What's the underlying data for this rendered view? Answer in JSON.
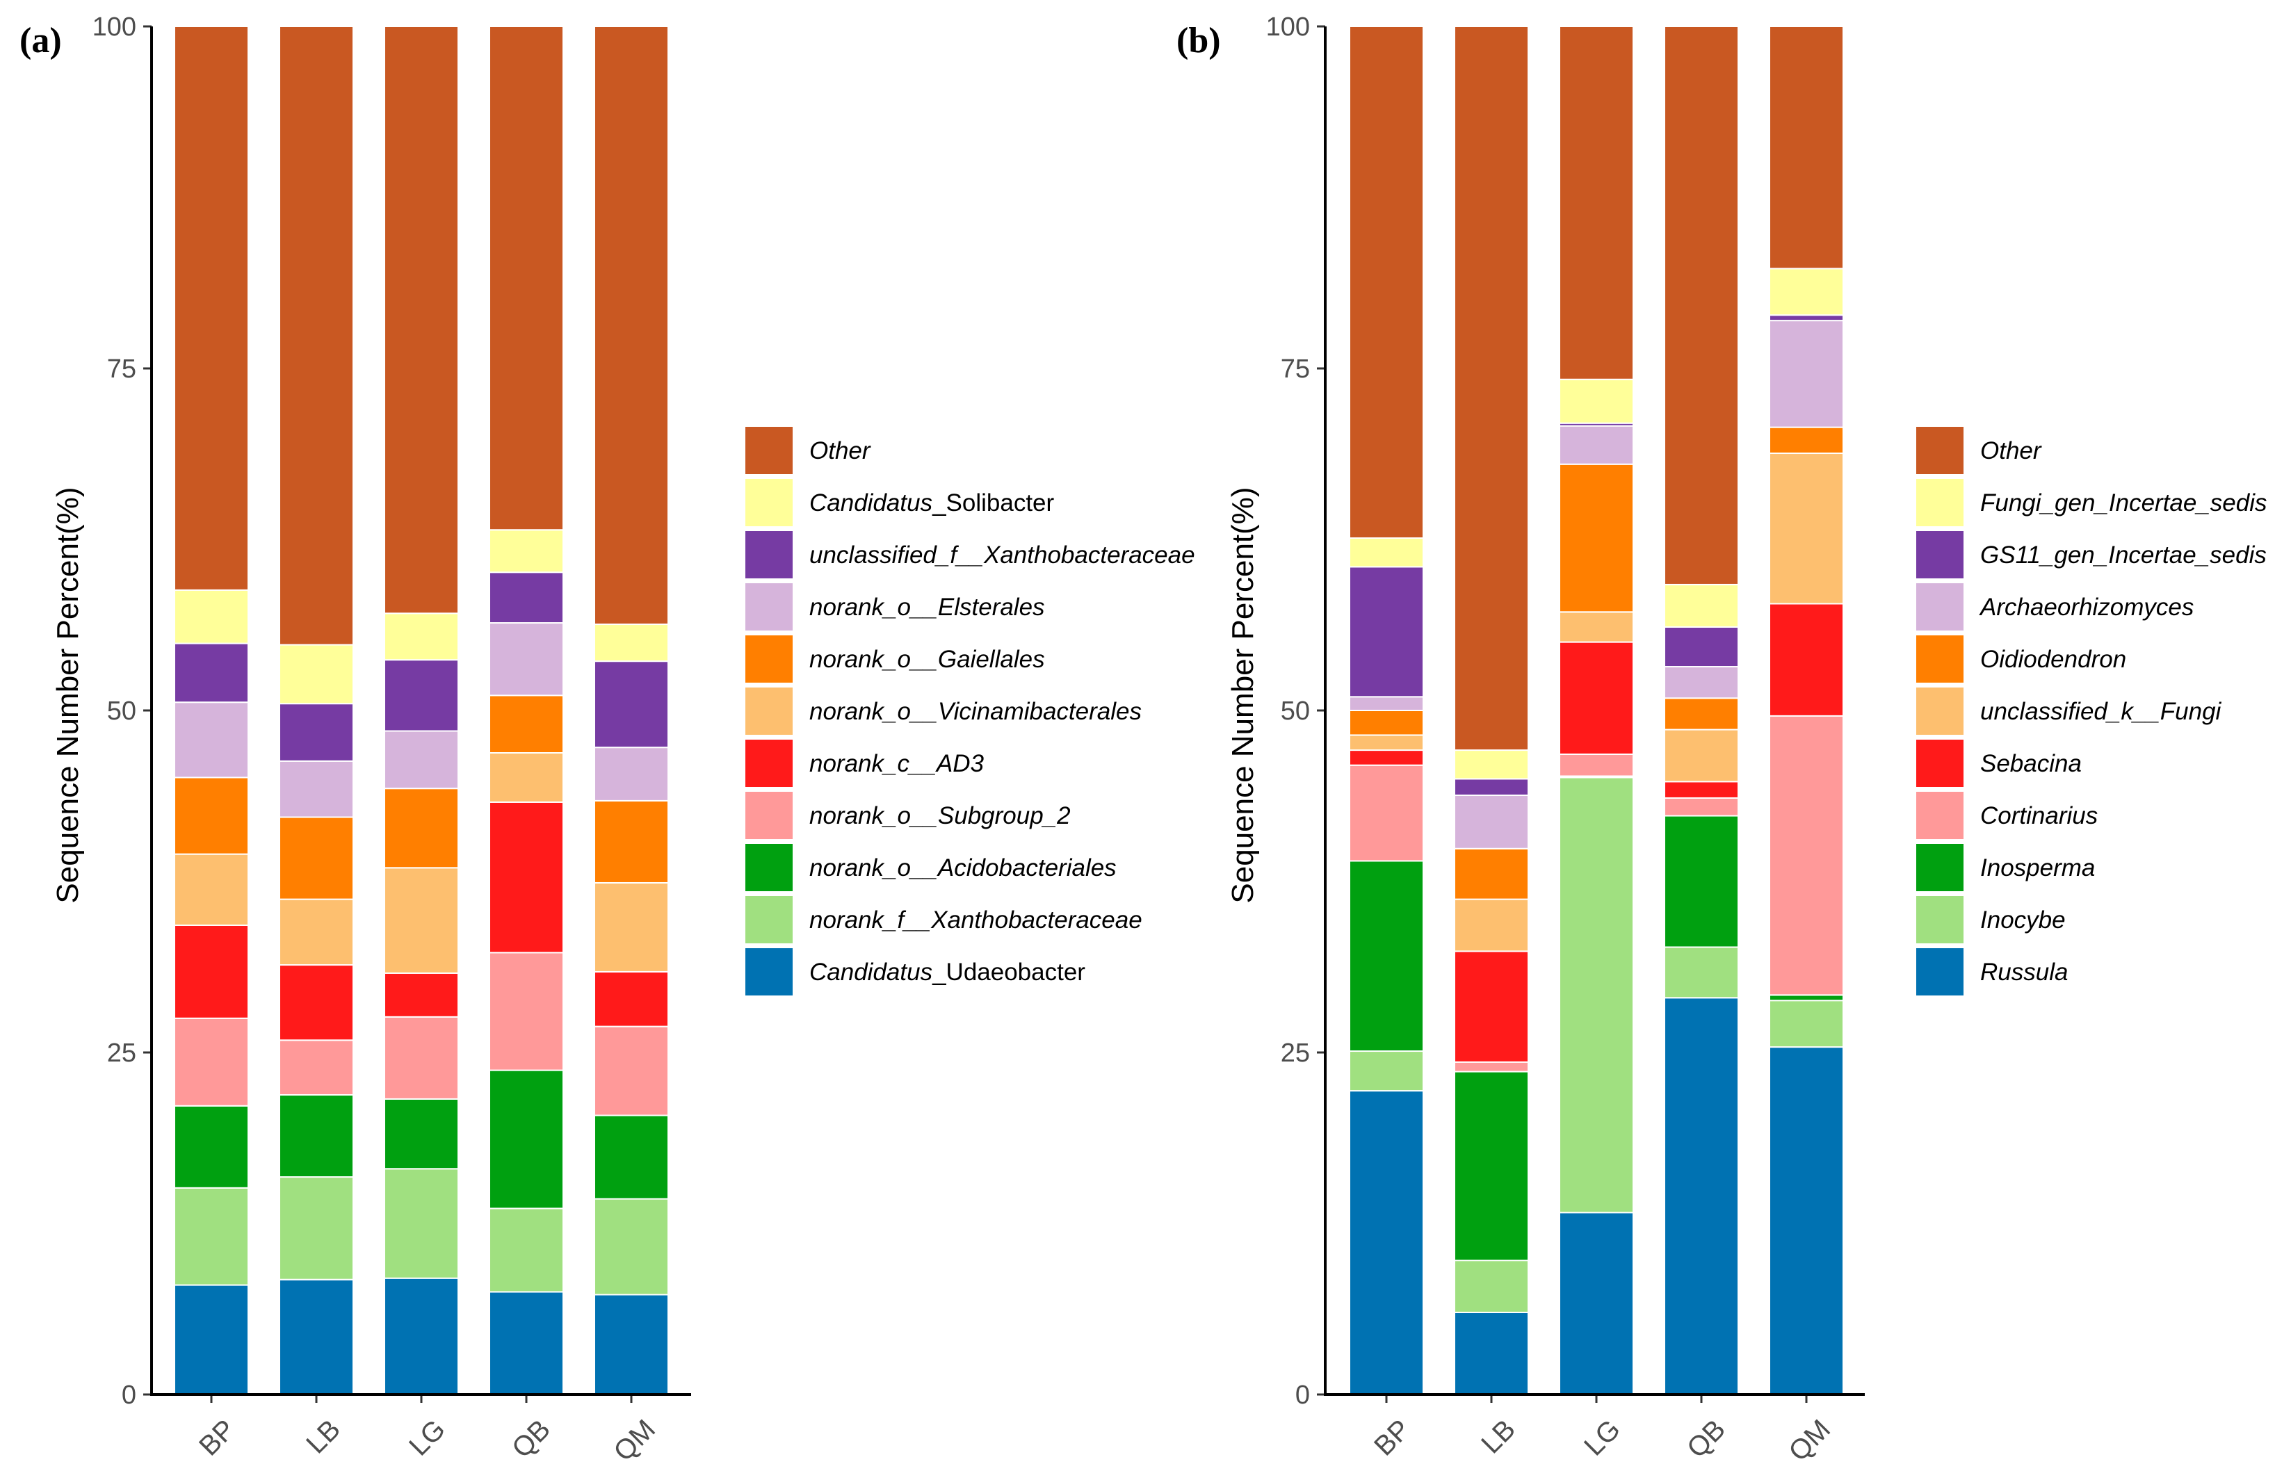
{
  "chart_data": [
    {
      "type": "bar",
      "stacked": true,
      "panel_label": "(a)",
      "ylabel": "Sequence Number Percent(%)",
      "ylim": [
        0,
        100
      ],
      "yticks": [
        "0",
        "25",
        "50",
        "75",
        "100"
      ],
      "categories": [
        "BP",
        "LB",
        "LG",
        "QB",
        "QM"
      ],
      "series": [
        {
          "name": "Candidatus_Udaeobacter",
          "label_parts": [
            {
              "t": "Candidatus",
              "i": true
            },
            {
              "t": "_Udaeobacter",
              "i": false
            }
          ],
          "color": "#0072B2",
          "values": [
            8.0,
            8.4,
            8.5,
            7.5,
            7.3
          ]
        },
        {
          "name": "norank_f__Xanthobacteraceae",
          "label_parts": [
            {
              "t": "norank_f__Xanthobacteraceae",
              "i": true
            }
          ],
          "color": "#A0E080",
          "values": [
            7.1,
            7.5,
            8.0,
            6.1,
            7.0
          ]
        },
        {
          "name": "norank_o__Acidobacteriales",
          "label_parts": [
            {
              "t": "norank_o__Acidobacteriales",
              "i": true
            }
          ],
          "color": "#00A010",
          "values": [
            6.0,
            6.0,
            5.1,
            10.1,
            6.1
          ]
        },
        {
          "name": "norank_o__Subgroup_2",
          "label_parts": [
            {
              "t": "norank_o__Subgroup_2",
              "i": true
            }
          ],
          "color": "#FF9999",
          "values": [
            6.4,
            4.0,
            6.0,
            8.6,
            6.5
          ]
        },
        {
          "name": "norank_c__AD3",
          "label_parts": [
            {
              "t": "norank_c__AD3",
              "i": true
            }
          ],
          "color": "#FF1A1A",
          "values": [
            6.8,
            5.5,
            3.2,
            11.0,
            4.0
          ]
        },
        {
          "name": "norank_o__Vicinamibacterales",
          "label_parts": [
            {
              "t": "norank_o__Vicinamibacterales",
              "i": true
            }
          ],
          "color": "#FDBF6F",
          "values": [
            5.2,
            4.8,
            7.7,
            3.6,
            6.5
          ]
        },
        {
          "name": "norank_o__Gaiellales",
          "label_parts": [
            {
              "t": "norank_o__Gaiellales",
              "i": true
            }
          ],
          "color": "#FF7F00",
          "values": [
            5.6,
            6.0,
            5.8,
            4.2,
            6.0
          ]
        },
        {
          "name": "norank_o__Elsterales",
          "label_parts": [
            {
              "t": "norank_o__Elsterales",
              "i": true
            }
          ],
          "color": "#D6B4DB",
          "values": [
            5.5,
            4.1,
            4.2,
            5.3,
            3.9
          ]
        },
        {
          "name": "unclassified_f__Xanthobacteraceae",
          "label_parts": [
            {
              "t": "unclassified_f__Xanthobacteraceae",
              "i": true
            }
          ],
          "color": "#763BA3",
          "values": [
            4.3,
            4.2,
            5.2,
            3.7,
            6.3
          ]
        },
        {
          "name": "Candidatus_Solibacter",
          "label_parts": [
            {
              "t": "Candidatus",
              "i": true
            },
            {
              "t": "_Solibacter",
              "i": false
            }
          ],
          "color": "#FFFF99",
          "values": [
            3.9,
            4.3,
            3.4,
            3.1,
            2.7
          ]
        },
        {
          "name": "Other",
          "label_parts": [
            {
              "t": "Other",
              "i": true
            }
          ],
          "color": "#C95822",
          "values": [
            41.2,
            45.2,
            42.9,
            36.8,
            43.7
          ]
        }
      ]
    },
    {
      "type": "bar",
      "stacked": true,
      "panel_label": "(b)",
      "ylabel": "Sequence Number Percent(%)",
      "ylim": [
        0,
        100
      ],
      "yticks": [
        "0",
        "25",
        "50",
        "75",
        "100"
      ],
      "categories": [
        "BP",
        "LB",
        "LG",
        "QB",
        "QM"
      ],
      "series": [
        {
          "name": "Russula",
          "label_parts": [
            {
              "t": "Russula",
              "i": true
            }
          ],
          "color": "#0072B2",
          "values": [
            22.2,
            6.0,
            13.3,
            29.0,
            25.4
          ]
        },
        {
          "name": "Inocybe",
          "label_parts": [
            {
              "t": "Inocybe",
              "i": true
            }
          ],
          "color": "#A0E080",
          "values": [
            2.9,
            3.8,
            31.8,
            3.7,
            3.4
          ]
        },
        {
          "name": "Inosperma",
          "label_parts": [
            {
              "t": "Inosperma",
              "i": true
            }
          ],
          "color": "#00A010",
          "values": [
            13.9,
            13.8,
            0.1,
            9.6,
            0.4
          ]
        },
        {
          "name": "Cortinarius",
          "label_parts": [
            {
              "t": "Cortinarius",
              "i": true
            }
          ],
          "color": "#FF9999",
          "values": [
            7.0,
            0.7,
            1.6,
            1.3,
            20.4
          ]
        },
        {
          "name": "Sebacina",
          "label_parts": [
            {
              "t": "Sebacina",
              "i": true
            }
          ],
          "color": "#FF1A1A",
          "values": [
            1.1,
            8.1,
            8.2,
            1.2,
            8.2
          ]
        },
        {
          "name": "unclassified_k__Fungi",
          "label_parts": [
            {
              "t": "unclassified_k__Fungi",
              "i": true
            }
          ],
          "color": "#FDBF6F",
          "values": [
            1.1,
            3.8,
            2.2,
            3.8,
            11.0
          ]
        },
        {
          "name": "Oidiodendron",
          "label_parts": [
            {
              "t": "Oidiodendron",
              "i": true
            }
          ],
          "color": "#FF7F00",
          "values": [
            1.8,
            3.7,
            10.8,
            2.3,
            1.9
          ]
        },
        {
          "name": "Archaeorhizomyces",
          "label_parts": [
            {
              "t": "Archaeorhizomyces",
              "i": true
            }
          ],
          "color": "#D6B4DB",
          "values": [
            1.0,
            3.9,
            2.8,
            2.3,
            7.8
          ]
        },
        {
          "name": "GS11_gen_Incertae_sedis",
          "label_parts": [
            {
              "t": "GS11_gen_Incertae_sedis",
              "i": true
            }
          ],
          "color": "#763BA3",
          "values": [
            9.5,
            1.2,
            0.2,
            2.9,
            0.4
          ]
        },
        {
          "name": "Fungi_gen_Incertae_sedis",
          "label_parts": [
            {
              "t": "Fungi_gen_Incertae_sedis",
              "i": true
            }
          ],
          "color": "#FFFF99",
          "values": [
            2.1,
            2.1,
            3.2,
            3.1,
            3.4
          ]
        },
        {
          "name": "Other",
          "label_parts": [
            {
              "t": "Other",
              "i": true
            }
          ],
          "color": "#C95822",
          "values": [
            37.4,
            52.9,
            25.8,
            40.8,
            17.7
          ]
        }
      ]
    }
  ]
}
